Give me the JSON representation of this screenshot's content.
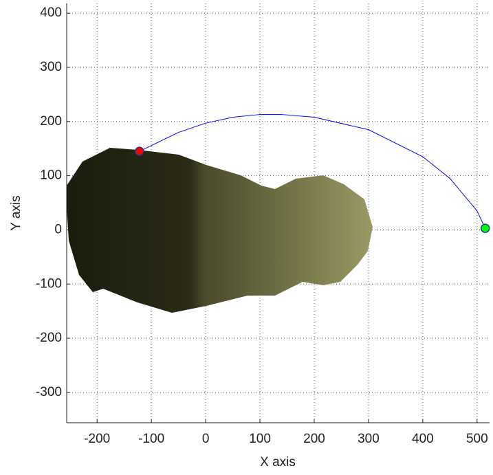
{
  "chart_data": {
    "type": "line",
    "xlabel": "X axis",
    "ylabel": "Y axis",
    "xlim": [
      -256,
      523
    ],
    "ylim": [
      -356,
      418
    ],
    "xticks": [
      -200,
      -100,
      0,
      100,
      200,
      300,
      400,
      500
    ],
    "yticks": [
      -300,
      -200,
      -100,
      0,
      100,
      200,
      300,
      400
    ],
    "grid": true,
    "series": [
      {
        "color": "#0000ff",
        "x": [
          -122,
          -50,
          0,
          50,
          100,
          140,
          200,
          300,
          400,
          450,
          500,
          515
        ],
        "values": [
          145,
          180,
          197,
          208,
          213,
          213,
          208,
          185,
          135,
          95,
          35,
          3
        ]
      }
    ],
    "markers": [
      {
        "x": -122,
        "y": 145,
        "color": "#ff0000"
      },
      {
        "x": 515,
        "y": 3,
        "color": "#00ff00"
      }
    ]
  }
}
